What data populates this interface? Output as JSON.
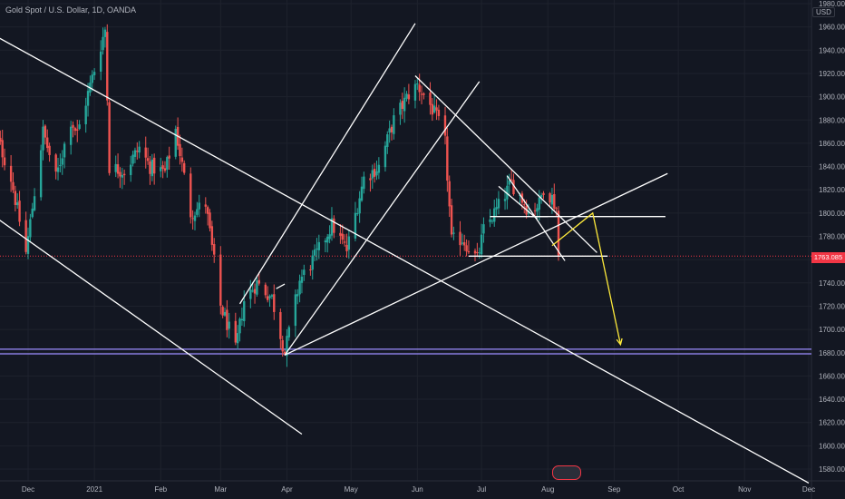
{
  "header": {
    "title": "Gold Spot / U.S. Dollar, 1D, OANDA",
    "currency": "USD"
  },
  "price_label": "1763.085",
  "badge_text": "",
  "colors": {
    "background": "#131722",
    "grid": "#1e222d",
    "up": "#26a69a",
    "down": "#ef5350",
    "drawing": "#ffffff",
    "arrow": "#ffeb3b",
    "support": "#9b8cff",
    "current_price_line": "#f23645"
  },
  "chart_data": {
    "type": "candlestick",
    "title": "Gold Spot / U.S. Dollar, 1D, OANDA",
    "xlabel": "",
    "ylabel": "",
    "ylim": [
      1567,
      1983
    ],
    "y_ticks": [
      1580,
      1600,
      1620,
      1640,
      1660,
      1680,
      1700,
      1720,
      1740,
      1760,
      1780,
      1800,
      1820,
      1840,
      1860,
      1880,
      1900,
      1920,
      1940,
      1960,
      1980
    ],
    "x_ticks": [
      {
        "label": "Dec",
        "date": "2020-12-01"
      },
      {
        "label": "2021",
        "date": "2021-01-01"
      },
      {
        "label": "Feb",
        "date": "2021-02-01"
      },
      {
        "label": "Mar",
        "date": "2021-03-01"
      },
      {
        "label": "Apr",
        "date": "2021-04-01"
      },
      {
        "label": "May",
        "date": "2021-05-01"
      },
      {
        "label": "Jun",
        "date": "2021-06-01"
      },
      {
        "label": "Jul",
        "date": "2021-07-01"
      },
      {
        "label": "Aug",
        "date": "2021-08-01"
      },
      {
        "label": "Sep",
        "date": "2021-09-01"
      },
      {
        "label": "Oct",
        "date": "2021-10-01"
      },
      {
        "label": "Nov",
        "date": "2021-11-01"
      },
      {
        "label": "Dec",
        "date": "2021-12-01"
      }
    ],
    "current_price": 1763.085,
    "anchors": [
      [
        "2020-11-13",
        1885
      ],
      [
        "2020-11-23",
        1830
      ],
      [
        "2020-11-30",
        1766
      ],
      [
        "2020-12-08",
        1870
      ],
      [
        "2020-12-14",
        1830
      ],
      [
        "2020-12-21",
        1880
      ],
      [
        "2020-12-24",
        1868
      ],
      [
        "2021-01-06",
        1958
      ],
      [
        "2021-01-08",
        1840
      ],
      [
        "2021-01-15",
        1836
      ],
      [
        "2021-01-22",
        1856
      ],
      [
        "2021-01-27",
        1840
      ],
      [
        "2021-02-03",
        1835
      ],
      [
        "2021-02-08",
        1872
      ],
      [
        "2021-02-15",
        1800
      ],
      [
        "2021-02-22",
        1808
      ],
      [
        "2021-03-01",
        1720
      ],
      [
        "2021-03-05",
        1700
      ],
      [
        "2021-03-08",
        1682
      ],
      [
        "2021-03-12",
        1725
      ],
      [
        "2021-03-18",
        1740
      ],
      [
        "2021-03-25",
        1727
      ],
      [
        "2021-03-31",
        1680
      ],
      [
        "2021-04-07",
        1742
      ],
      [
        "2021-04-15",
        1765
      ],
      [
        "2021-04-22",
        1790
      ],
      [
        "2021-04-29",
        1768
      ],
      [
        "2021-05-07",
        1830
      ],
      [
        "2021-05-14",
        1840
      ],
      [
        "2021-05-21",
        1880
      ],
      [
        "2021-05-28",
        1902
      ],
      [
        "2021-06-01",
        1910
      ],
      [
        "2021-06-07",
        1893
      ],
      [
        "2021-06-11",
        1878
      ],
      [
        "2021-06-14",
        1860
      ],
      [
        "2021-06-17",
        1776
      ],
      [
        "2021-06-22",
        1778
      ],
      [
        "2021-06-29",
        1760
      ],
      [
        "2021-07-02",
        1785
      ],
      [
        "2021-07-09",
        1806
      ],
      [
        "2021-07-15",
        1826
      ],
      [
        "2021-07-20",
        1812
      ],
      [
        "2021-07-23",
        1802
      ],
      [
        "2021-07-28",
        1808
      ],
      [
        "2021-07-30",
        1822
      ],
      [
        "2021-08-03",
        1813
      ],
      [
        "2021-08-05",
        1804
      ],
      [
        "2021-08-06",
        1763
      ]
    ],
    "drawings": {
      "trend_lines": [
        [
          [
            "2020-11-13",
            1955
          ],
          [
            "2021-12-01",
            1568
          ]
        ],
        [
          [
            "2020-11-13",
            1800
          ],
          [
            "2021-04-08",
            1610
          ]
        ],
        [
          [
            "2021-03-10",
            1722
          ],
          [
            "2021-05-31",
            1963
          ]
        ],
        [
          [
            "2021-03-31",
            1678
          ],
          [
            "2021-06-30",
            1913
          ]
        ],
        [
          [
            "2021-03-31",
            1678
          ],
          [
            "2021-09-26",
            1834
          ]
        ],
        [
          [
            "2021-05-31",
            1918
          ],
          [
            "2021-08-24",
            1766
          ]
        ],
        [
          [
            "2021-07-13",
            1832
          ],
          [
            "2021-08-09",
            1759
          ]
        ],
        [
          [
            "2021-07-09",
            1823
          ],
          [
            "2021-07-27",
            1795
          ]
        ],
        [
          [
            "2021-03-27",
            1735
          ],
          [
            "2021-03-31",
            1739
          ]
        ]
      ],
      "horizontal_lines": [
        [
          [
            "2021-07-05",
            1797
          ],
          [
            "2021-09-25",
            1797
          ]
        ],
        [
          [
            "2021-06-25",
            1763
          ],
          [
            "2021-08-29",
            1763
          ]
        ],
        [
          [
            "2021-07-24",
            1797
          ],
          [
            "2021-08-01",
            1797
          ]
        ]
      ],
      "support_lines": [
        1683,
        1679
      ],
      "projection": [
        [
          "2021-08-03",
          1772
        ],
        [
          "2021-08-22",
          1800
        ],
        [
          "2021-09-04",
          1687
        ]
      ]
    }
  }
}
